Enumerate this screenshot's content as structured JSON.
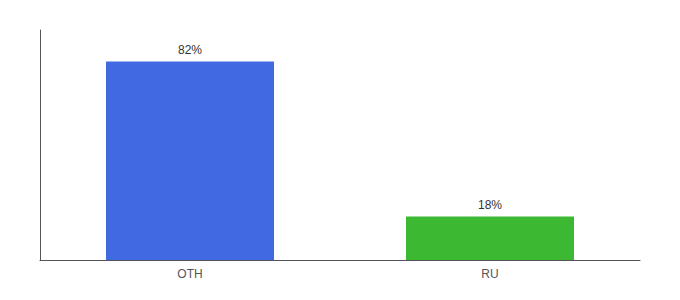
{
  "chart_data": {
    "type": "bar",
    "categories": [
      "OTH",
      "RU"
    ],
    "values": [
      82,
      18
    ],
    "value_labels": [
      "82%",
      "18%"
    ],
    "colors": [
      "#4169e1",
      "#3cb832"
    ],
    "ylim": [
      0,
      95
    ],
    "data_labels": true,
    "tick_labels": "x",
    "grid": false
  }
}
